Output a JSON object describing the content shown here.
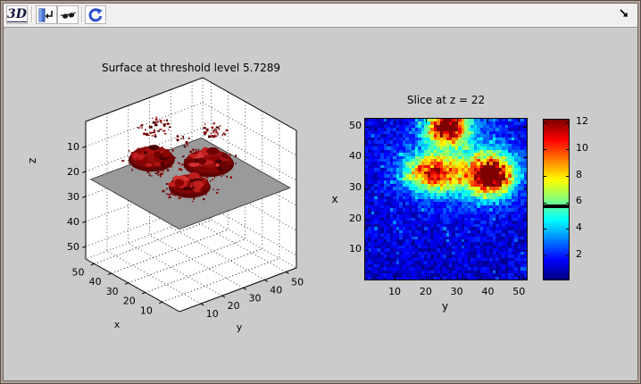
{
  "window": {
    "background": "#cbcbcb",
    "frame_color": "#b3a29a",
    "toolbar": {
      "background": "#f2f0ef",
      "buttons": [
        {
          "id": "rotate-3d",
          "icon": "3d-logo-icon",
          "glyph": "3D"
        },
        {
          "id": "slice-control",
          "icon": "slice-enter-icon"
        },
        {
          "id": "iso-visibility",
          "icon": "sunglasses-icon"
        },
        {
          "id": "refresh",
          "icon": "refresh-arrow-icon"
        }
      ],
      "corner": {
        "icon": "dock-arrow-icon"
      }
    },
    "accent_blue": "#2a4fd0"
  },
  "chart_data": [
    {
      "type": "isosurface-3d",
      "title": "Surface at threshold level 5.7289",
      "xlabel": "x",
      "ylabel": "y",
      "zlabel": "z",
      "xticks": [
        10,
        20,
        30,
        40,
        50
      ],
      "yticks": [
        10,
        20,
        30,
        40,
        50
      ],
      "zticks": [
        10,
        20,
        30,
        40,
        50
      ],
      "axis_range": [
        0,
        55
      ],
      "zdir": "reverse",
      "grid": "dotted",
      "threshold": 5.7289,
      "slice_plane_z": 22,
      "plane_color": "#9a9a9a",
      "surface_color": "#8b0404",
      "blobs": [
        {
          "x": 50,
          "y": 27,
          "r": 11
        },
        {
          "x": 34,
          "y": 41,
          "r": 12
        },
        {
          "x": 24,
          "y": 24,
          "r": 10
        }
      ],
      "speck_clusters": [
        {
          "x": 48,
          "y": 26,
          "z": 7,
          "count": 42,
          "spread": 15
        },
        {
          "x": 34,
          "y": 43,
          "z": 9,
          "count": 32,
          "spread": 12
        },
        {
          "x": 41,
          "y": 34,
          "z": 13,
          "count": 12,
          "spread": 9
        }
      ]
    },
    {
      "type": "heatmap",
      "title": "Slice at z = 22",
      "xlabel": "y",
      "ylabel": "x",
      "xticks": [
        10,
        20,
        30,
        40,
        50
      ],
      "yticks": [
        10,
        20,
        30,
        40,
        50
      ],
      "grid_size": 52,
      "colormap": "jet",
      "clim": [
        0.2,
        12.2
      ],
      "noise": {
        "base": 0.3,
        "range": 1.8
      },
      "hotspots": [
        {
          "x": 50,
          "y": 27,
          "amp": 11.5,
          "sx": 3.5,
          "sy": 4.5
        },
        {
          "x": 34,
          "y": 41,
          "amp": 11.0,
          "sx": 4.5,
          "sy": 5.0
        },
        {
          "x": 35,
          "y": 22,
          "amp": 7.5,
          "sx": 4.0,
          "sy": 6.0
        },
        {
          "x": 38,
          "y": 31,
          "amp": 3.2,
          "sx": 9.0,
          "sy": 12.0
        }
      ],
      "colorbar": {
        "ticks": [
          2,
          4,
          6,
          8,
          10,
          12
        ],
        "threshold_marker": 5.7289
      }
    }
  ]
}
